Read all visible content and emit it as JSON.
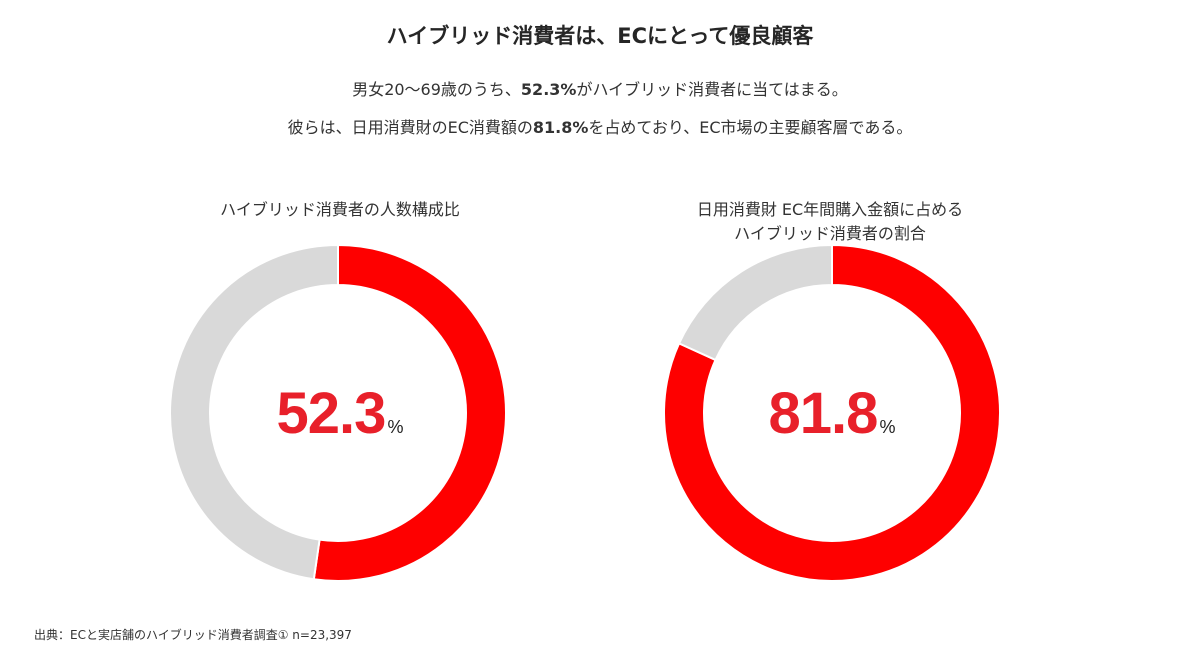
{
  "title": "ハイブリッド消費者は、ECにとって優良顧客",
  "subtitle_line1": {
    "prefix": "男女20〜69歳のうち、",
    "bold": "52.3%",
    "suffix": "がハイブリッド消費者に当てはまる。"
  },
  "subtitle_line2": {
    "prefix": "彼らは、日用消費財のEC消費額の",
    "bold": "81.8%",
    "suffix": "を占めており、EC市場の主要顧客層である。"
  },
  "source": "出典：ECと実店舗のハイブリッド消費者調査① n=23,397",
  "colors": {
    "highlight": "#fe0000",
    "remainder": "#d9d9d9",
    "value_text": "#e8202a"
  },
  "chart_data": [
    {
      "type": "pie",
      "title": "ハイブリッド消費者の人数構成比",
      "center_label": "52.3",
      "unit": "%",
      "values": [
        52.3,
        47.7
      ]
    },
    {
      "type": "pie",
      "title_lines": [
        "日用消費財 EC年間購入金額に占める",
        "ハイブリッド消費者の割合"
      ],
      "center_label": "81.8",
      "unit": "%",
      "values": [
        81.8,
        18.2
      ]
    }
  ]
}
